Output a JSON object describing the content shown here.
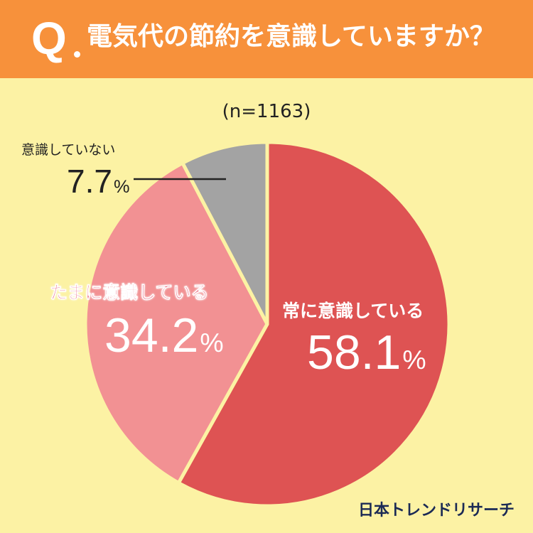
{
  "header": {
    "q_mark": "Q",
    "question": "電気代の節約を意識していますか？"
  },
  "sample_size": "(n=1163)",
  "chart_data": {
    "type": "pie",
    "slices": [
      {
        "label": "常に意識している",
        "value": 58.1,
        "color": "#de5353"
      },
      {
        "label": "たまに意識している",
        "value": 34.2,
        "color": "#f29193"
      },
      {
        "label": "意識していない",
        "value": 7.7,
        "color": "#a3a3a3"
      }
    ],
    "unit": "%",
    "start": "12 o'clock",
    "direction": "clockwise",
    "separator_color": "#fcf2a4"
  },
  "labels": {
    "always_label": "常に意識している",
    "always_value": "58.1",
    "sometimes_label": "たまに意識している",
    "sometimes_value": "34.2",
    "never_label": "意識していない",
    "never_value": "7.7",
    "unit": "%"
  },
  "brand": "日本トレンドリサーチ"
}
